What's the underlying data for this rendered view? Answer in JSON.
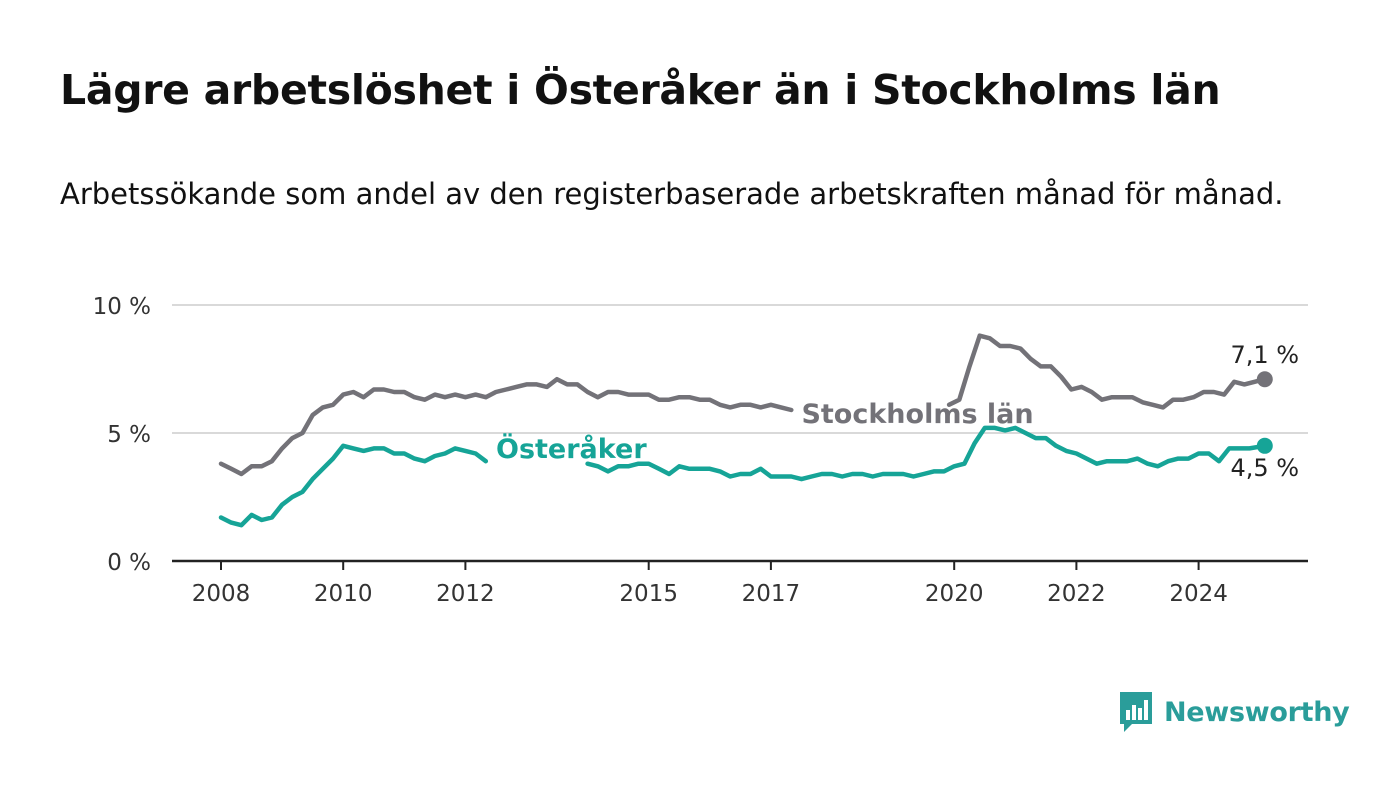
{
  "title": "Lägre arbetslöshet i Österåker än i Stockholms län",
  "subtitle": "Arbetssökande som andel av den registerbaserade arbetskraften månad för månad.",
  "brand": {
    "name": "Newsworthy",
    "icon": "bar-chart-speech-bubble-icon",
    "color": "#2a9d9a"
  },
  "colors": {
    "stockholm": "#737278",
    "osteraker": "#16a497",
    "grid": "#d9d9d9",
    "axis": "#222222"
  },
  "chart_data": {
    "type": "line",
    "title": "Lägre arbetslöshet i Österåker än i Stockholms län",
    "subtitle": "Arbetssökande som andel av den registerbaserade arbetskraften månad för månad.",
    "xlabel": "",
    "ylabel": "",
    "xlim": [
      "2007-10",
      "2025-12"
    ],
    "ylim": [
      0,
      10
    ],
    "y_ticks": [
      {
        "value": 0,
        "label": "0 %"
      },
      {
        "value": 5,
        "label": "5 %"
      },
      {
        "value": 10,
        "label": "10 %"
      }
    ],
    "x_ticks": [
      "2008",
      "2010",
      "2012",
      "2015",
      "2017",
      "2020",
      "2022",
      "2024"
    ],
    "grid": true,
    "legend": "inline",
    "series": [
      {
        "name": "Stockholms län",
        "key": "stockholm",
        "label_position": "2017-07",
        "end_label": "7,1 %",
        "end_value": 7.1,
        "points": [
          [
            "2008-01",
            3.8
          ],
          [
            "2008-03",
            3.6
          ],
          [
            "2008-05",
            3.4
          ],
          [
            "2008-07",
            3.7
          ],
          [
            "2008-09",
            3.7
          ],
          [
            "2008-11",
            3.9
          ],
          [
            "2009-01",
            4.4
          ],
          [
            "2009-03",
            4.8
          ],
          [
            "2009-05",
            5.0
          ],
          [
            "2009-07",
            5.7
          ],
          [
            "2009-09",
            6.0
          ],
          [
            "2009-11",
            6.1
          ],
          [
            "2010-01",
            6.5
          ],
          [
            "2010-03",
            6.6
          ],
          [
            "2010-05",
            6.4
          ],
          [
            "2010-07",
            6.7
          ],
          [
            "2010-09",
            6.7
          ],
          [
            "2010-11",
            6.6
          ],
          [
            "2011-01",
            6.6
          ],
          [
            "2011-03",
            6.4
          ],
          [
            "2011-05",
            6.3
          ],
          [
            "2011-07",
            6.5
          ],
          [
            "2011-09",
            6.4
          ],
          [
            "2011-11",
            6.5
          ],
          [
            "2012-01",
            6.4
          ],
          [
            "2012-03",
            6.5
          ],
          [
            "2012-05",
            6.4
          ],
          [
            "2012-07",
            6.6
          ],
          [
            "2012-09",
            6.7
          ],
          [
            "2012-11",
            6.8
          ],
          [
            "2013-01",
            6.9
          ],
          [
            "2013-03",
            6.9
          ],
          [
            "2013-05",
            6.8
          ],
          [
            "2013-07",
            7.1
          ],
          [
            "2013-09",
            6.9
          ],
          [
            "2013-11",
            6.9
          ],
          [
            "2014-01",
            6.6
          ],
          [
            "2014-03",
            6.4
          ],
          [
            "2014-05",
            6.6
          ],
          [
            "2014-07",
            6.6
          ],
          [
            "2014-09",
            6.5
          ],
          [
            "2014-11",
            6.5
          ],
          [
            "2015-01",
            6.5
          ],
          [
            "2015-03",
            6.3
          ],
          [
            "2015-05",
            6.3
          ],
          [
            "2015-07",
            6.4
          ],
          [
            "2015-09",
            6.4
          ],
          [
            "2015-11",
            6.3
          ],
          [
            "2016-01",
            6.3
          ],
          [
            "2016-03",
            6.1
          ],
          [
            "2016-05",
            6.0
          ],
          [
            "2016-07",
            6.1
          ],
          [
            "2016-09",
            6.1
          ],
          [
            "2016-11",
            6.0
          ],
          [
            "2017-01",
            6.1
          ],
          [
            "2017-03",
            6.0
          ],
          [
            "2017-05",
            5.9
          ],
          [
            "2019-12",
            6.1
          ],
          [
            "2020-02",
            6.3
          ],
          [
            "2020-04",
            7.6
          ],
          [
            "2020-06",
            8.8
          ],
          [
            "2020-08",
            8.7
          ],
          [
            "2020-10",
            8.4
          ],
          [
            "2020-12",
            8.4
          ],
          [
            "2021-02",
            8.3
          ],
          [
            "2021-04",
            7.9
          ],
          [
            "2021-06",
            7.6
          ],
          [
            "2021-08",
            7.6
          ],
          [
            "2021-10",
            7.2
          ],
          [
            "2021-12",
            6.7
          ],
          [
            "2022-02",
            6.8
          ],
          [
            "2022-04",
            6.6
          ],
          [
            "2022-06",
            6.3
          ],
          [
            "2022-08",
            6.4
          ],
          [
            "2022-10",
            6.4
          ],
          [
            "2022-12",
            6.4
          ],
          [
            "2023-02",
            6.2
          ],
          [
            "2023-04",
            6.1
          ],
          [
            "2023-06",
            6.0
          ],
          [
            "2023-08",
            6.3
          ],
          [
            "2023-10",
            6.3
          ],
          [
            "2023-12",
            6.4
          ],
          [
            "2024-02",
            6.6
          ],
          [
            "2024-04",
            6.6
          ],
          [
            "2024-06",
            6.5
          ],
          [
            "2024-08",
            7.0
          ],
          [
            "2024-10",
            6.9
          ],
          [
            "2024-12",
            7.0
          ],
          [
            "2025-02",
            7.1
          ]
        ]
      },
      {
        "name": "Österåker",
        "key": "osteraker",
        "label_position": "2012-07",
        "end_label": "4,5 %",
        "end_value": 4.5,
        "points": [
          [
            "2008-01",
            1.7
          ],
          [
            "2008-03",
            1.5
          ],
          [
            "2008-05",
            1.4
          ],
          [
            "2008-07",
            1.8
          ],
          [
            "2008-09",
            1.6
          ],
          [
            "2008-11",
            1.7
          ],
          [
            "2009-01",
            2.2
          ],
          [
            "2009-03",
            2.5
          ],
          [
            "2009-05",
            2.7
          ],
          [
            "2009-07",
            3.2
          ],
          [
            "2009-09",
            3.6
          ],
          [
            "2009-11",
            4.0
          ],
          [
            "2010-01",
            4.5
          ],
          [
            "2010-03",
            4.4
          ],
          [
            "2010-05",
            4.3
          ],
          [
            "2010-07",
            4.4
          ],
          [
            "2010-09",
            4.4
          ],
          [
            "2010-11",
            4.2
          ],
          [
            "2011-01",
            4.2
          ],
          [
            "2011-03",
            4.0
          ],
          [
            "2011-05",
            3.9
          ],
          [
            "2011-07",
            4.1
          ],
          [
            "2011-09",
            4.2
          ],
          [
            "2011-11",
            4.4
          ],
          [
            "2012-01",
            4.3
          ],
          [
            "2012-03",
            4.2
          ],
          [
            "2012-05",
            3.9
          ],
          [
            "2014-01",
            3.8
          ],
          [
            "2014-03",
            3.7
          ],
          [
            "2014-05",
            3.5
          ],
          [
            "2014-07",
            3.7
          ],
          [
            "2014-09",
            3.7
          ],
          [
            "2014-11",
            3.8
          ],
          [
            "2015-01",
            3.8
          ],
          [
            "2015-03",
            3.6
          ],
          [
            "2015-05",
            3.4
          ],
          [
            "2015-07",
            3.7
          ],
          [
            "2015-09",
            3.6
          ],
          [
            "2015-11",
            3.6
          ],
          [
            "2016-01",
            3.6
          ],
          [
            "2016-03",
            3.5
          ],
          [
            "2016-05",
            3.3
          ],
          [
            "2016-07",
            3.4
          ],
          [
            "2016-09",
            3.4
          ],
          [
            "2016-11",
            3.6
          ],
          [
            "2017-01",
            3.3
          ],
          [
            "2017-03",
            3.3
          ],
          [
            "2017-05",
            3.3
          ],
          [
            "2017-07",
            3.2
          ],
          [
            "2017-09",
            3.3
          ],
          [
            "2017-11",
            3.4
          ],
          [
            "2018-01",
            3.4
          ],
          [
            "2018-03",
            3.3
          ],
          [
            "2018-05",
            3.4
          ],
          [
            "2018-07",
            3.4
          ],
          [
            "2018-09",
            3.3
          ],
          [
            "2018-11",
            3.4
          ],
          [
            "2019-01",
            3.4
          ],
          [
            "2019-03",
            3.4
          ],
          [
            "2019-05",
            3.3
          ],
          [
            "2019-07",
            3.4
          ],
          [
            "2019-09",
            3.5
          ],
          [
            "2019-11",
            3.5
          ],
          [
            "2020-01",
            3.7
          ],
          [
            "2020-03",
            3.8
          ],
          [
            "2020-05",
            4.6
          ],
          [
            "2020-07",
            5.2
          ],
          [
            "2020-09",
            5.2
          ],
          [
            "2020-11",
            5.1
          ],
          [
            "2021-01",
            5.2
          ],
          [
            "2021-03",
            5.0
          ],
          [
            "2021-05",
            4.8
          ],
          [
            "2021-07",
            4.8
          ],
          [
            "2021-09",
            4.5
          ],
          [
            "2021-11",
            4.3
          ],
          [
            "2022-01",
            4.2
          ],
          [
            "2022-03",
            4.0
          ],
          [
            "2022-05",
            3.8
          ],
          [
            "2022-07",
            3.9
          ],
          [
            "2022-09",
            3.9
          ],
          [
            "2022-11",
            3.9
          ],
          [
            "2023-01",
            4.0
          ],
          [
            "2023-03",
            3.8
          ],
          [
            "2023-05",
            3.7
          ],
          [
            "2023-07",
            3.9
          ],
          [
            "2023-09",
            4.0
          ],
          [
            "2023-11",
            4.0
          ],
          [
            "2024-01",
            4.2
          ],
          [
            "2024-03",
            4.2
          ],
          [
            "2024-05",
            3.9
          ],
          [
            "2024-07",
            4.4
          ],
          [
            "2024-09",
            4.4
          ],
          [
            "2024-11",
            4.4
          ],
          [
            "2025-02",
            4.5
          ]
        ]
      }
    ]
  }
}
